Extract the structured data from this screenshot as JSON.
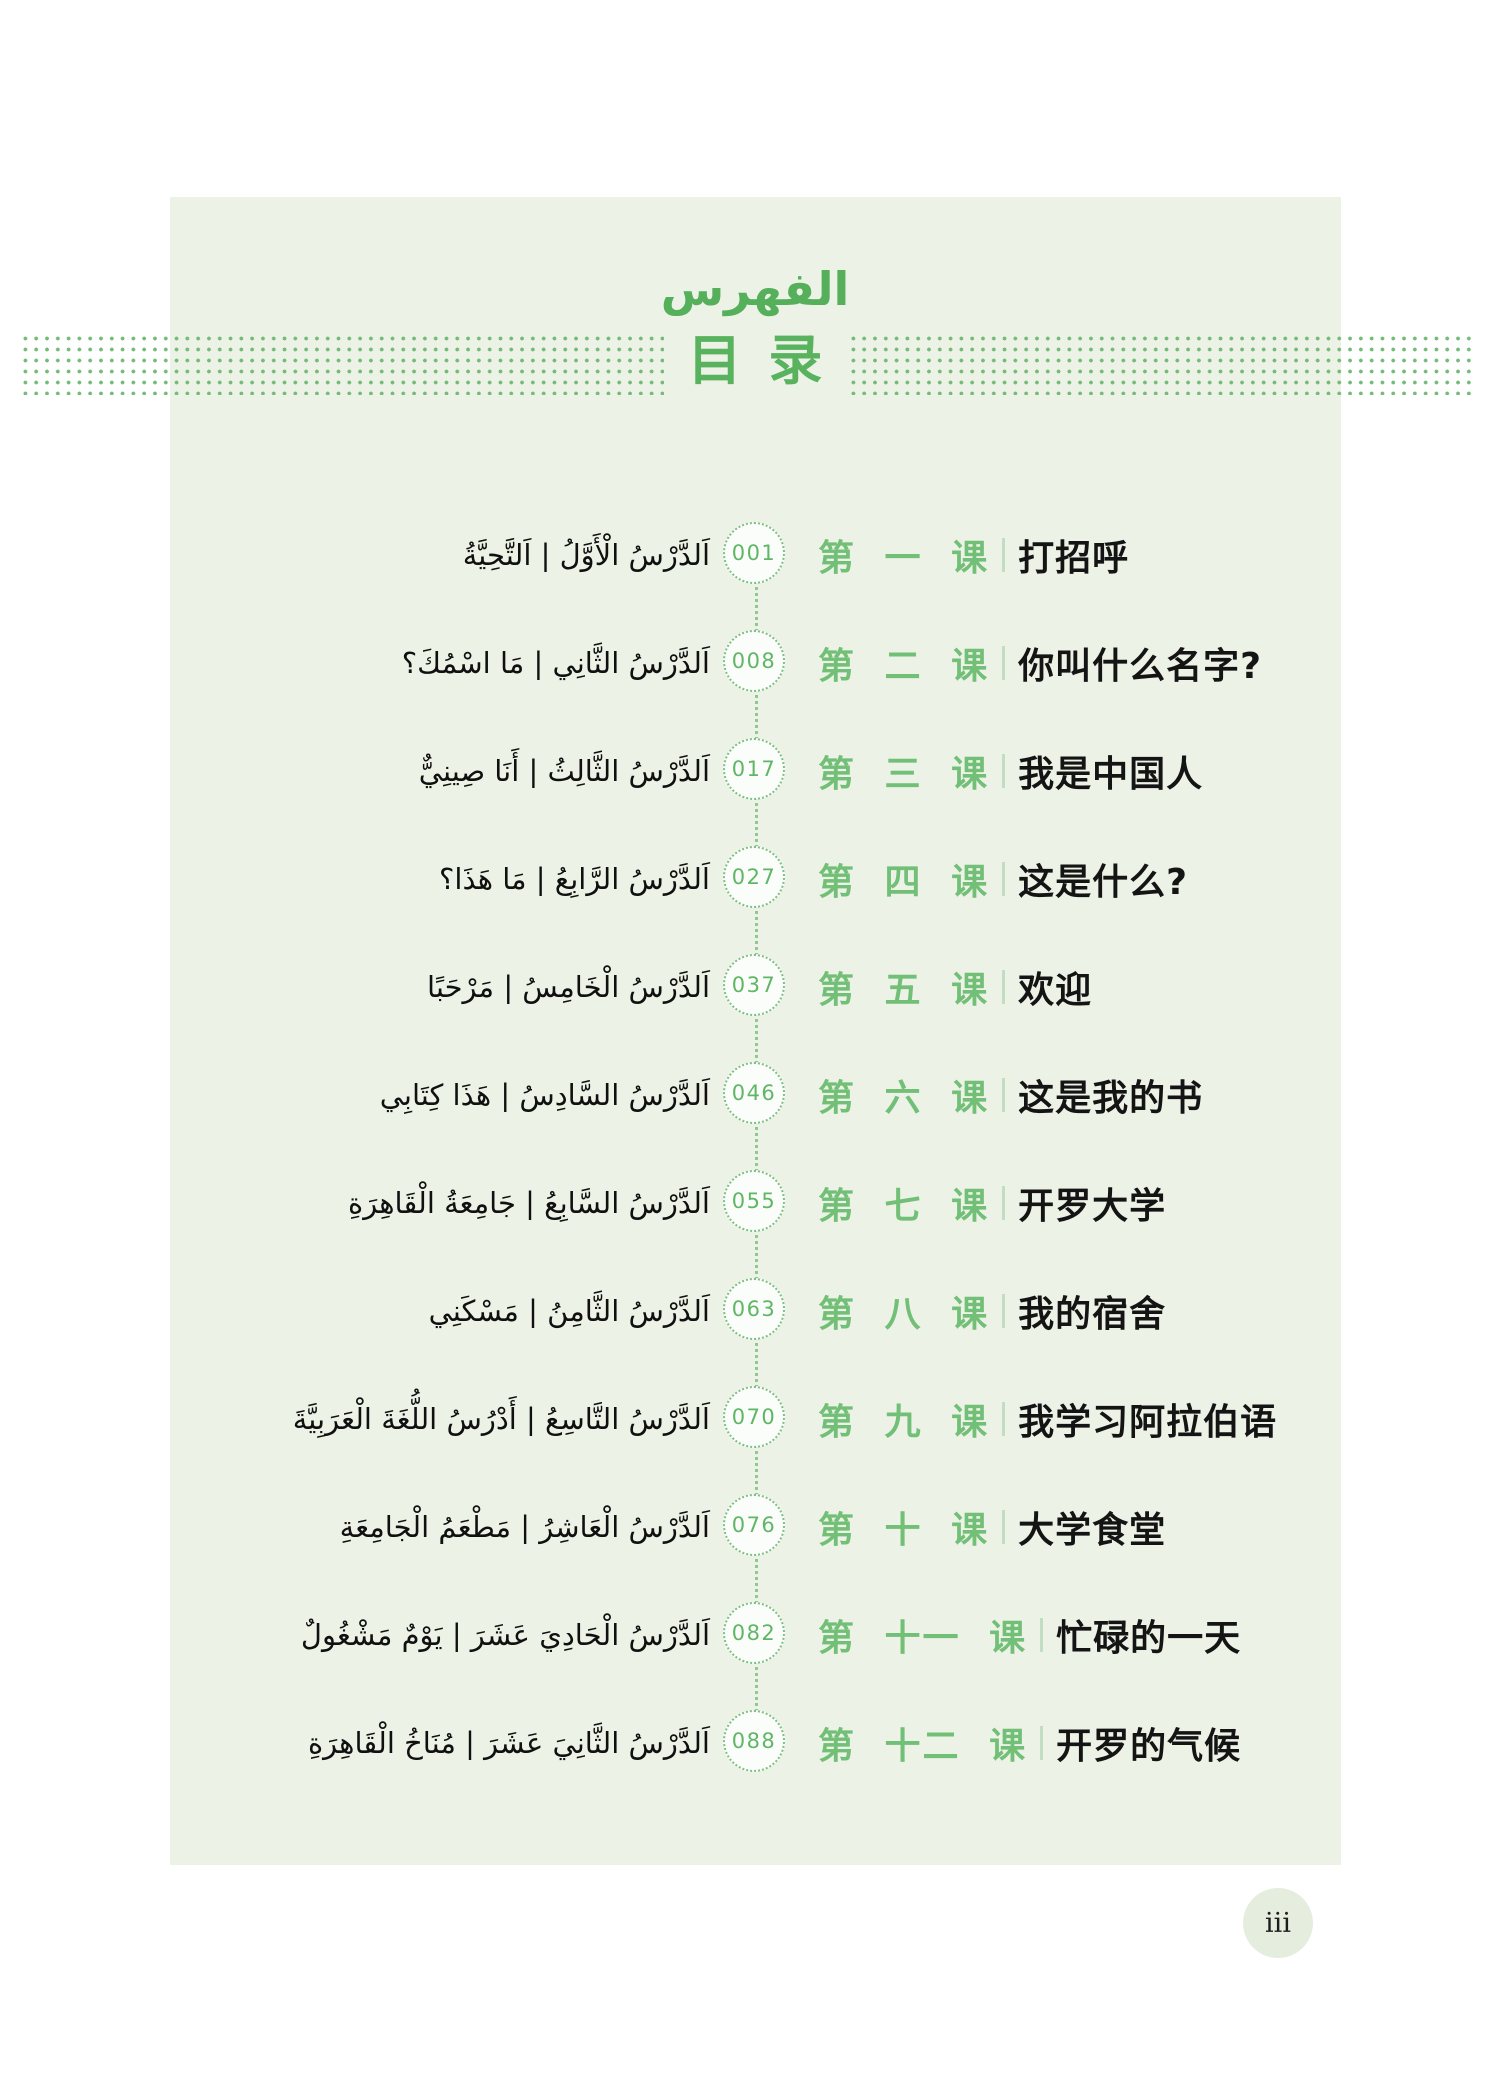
{
  "header": {
    "title_arabic": "الفهرس",
    "title_chinese": "目 录"
  },
  "colors": {
    "page_background": "#edf2e6",
    "accent_green": "#58b25e",
    "lesson_green": "#72bf77",
    "dot_green": "#74bb77",
    "text_black": "#141414"
  },
  "toc": {
    "items": [
      {
        "arabic": "اَلدَّرْسُ الْأَوَّلُ | اَلتَّحِيَّةُ",
        "page": "001",
        "lesson": "第 一 课",
        "title": "打招呼"
      },
      {
        "arabic": "اَلدَّرْسُ الثَّانِي | مَا اسْمُكَ؟",
        "page": "008",
        "lesson": "第 二 课",
        "title": "你叫什么名字?"
      },
      {
        "arabic": "اَلدَّرْسُ الثَّالِثُ | أَنَا صِينِيٌّ",
        "page": "017",
        "lesson": "第 三 课",
        "title": "我是中国人"
      },
      {
        "arabic": "اَلدَّرْسُ الرَّابِعُ | مَا هَذَا؟",
        "page": "027",
        "lesson": "第 四 课",
        "title": "这是什么?"
      },
      {
        "arabic": "اَلدَّرْسُ الْخَامِسُ | مَرْحَبًا",
        "page": "037",
        "lesson": "第 五 课",
        "title": "欢迎"
      },
      {
        "arabic": "اَلدَّرْسُ السَّادِسُ | هَذَا كِتَابِي",
        "page": "046",
        "lesson": "第 六 课",
        "title": "这是我的书"
      },
      {
        "arabic": "اَلدَّرْسُ السَّابِعُ | جَامِعَةُ الْقَاهِرَةِ",
        "page": "055",
        "lesson": "第 七 课",
        "title": "开罗大学"
      },
      {
        "arabic": "اَلدَّرْسُ الثَّامِنُ | مَسْكَنِي",
        "page": "063",
        "lesson": "第 八 课",
        "title": "我的宿舍"
      },
      {
        "arabic": "اَلدَّرْسُ التَّاسِعُ | أَدْرُسُ اللُّغَةَ الْعَرَبِيَّةَ",
        "page": "070",
        "lesson": "第 九 课",
        "title": "我学习阿拉伯语"
      },
      {
        "arabic": "اَلدَّرْسُ الْعَاشِرُ | مَطْعَمُ الْجَامِعَةِ",
        "page": "076",
        "lesson": "第 十 课",
        "title": "大学食堂"
      },
      {
        "arabic": "اَلدَّرْسُ الْحَادِيَ عَشَرَ | يَوْمٌ مَشْغُولٌ",
        "page": "082",
        "lesson": "第 十一 课",
        "title": "忙碌的一天"
      },
      {
        "arabic": "اَلدَّرْسُ الثَّانِيَ عَشَرَ | مُنَاخُ الْقَاهِرَةِ",
        "page": "088",
        "lesson": "第 十二 课",
        "title": "开罗的气候"
      }
    ]
  },
  "footer": {
    "page_number": "iii"
  }
}
